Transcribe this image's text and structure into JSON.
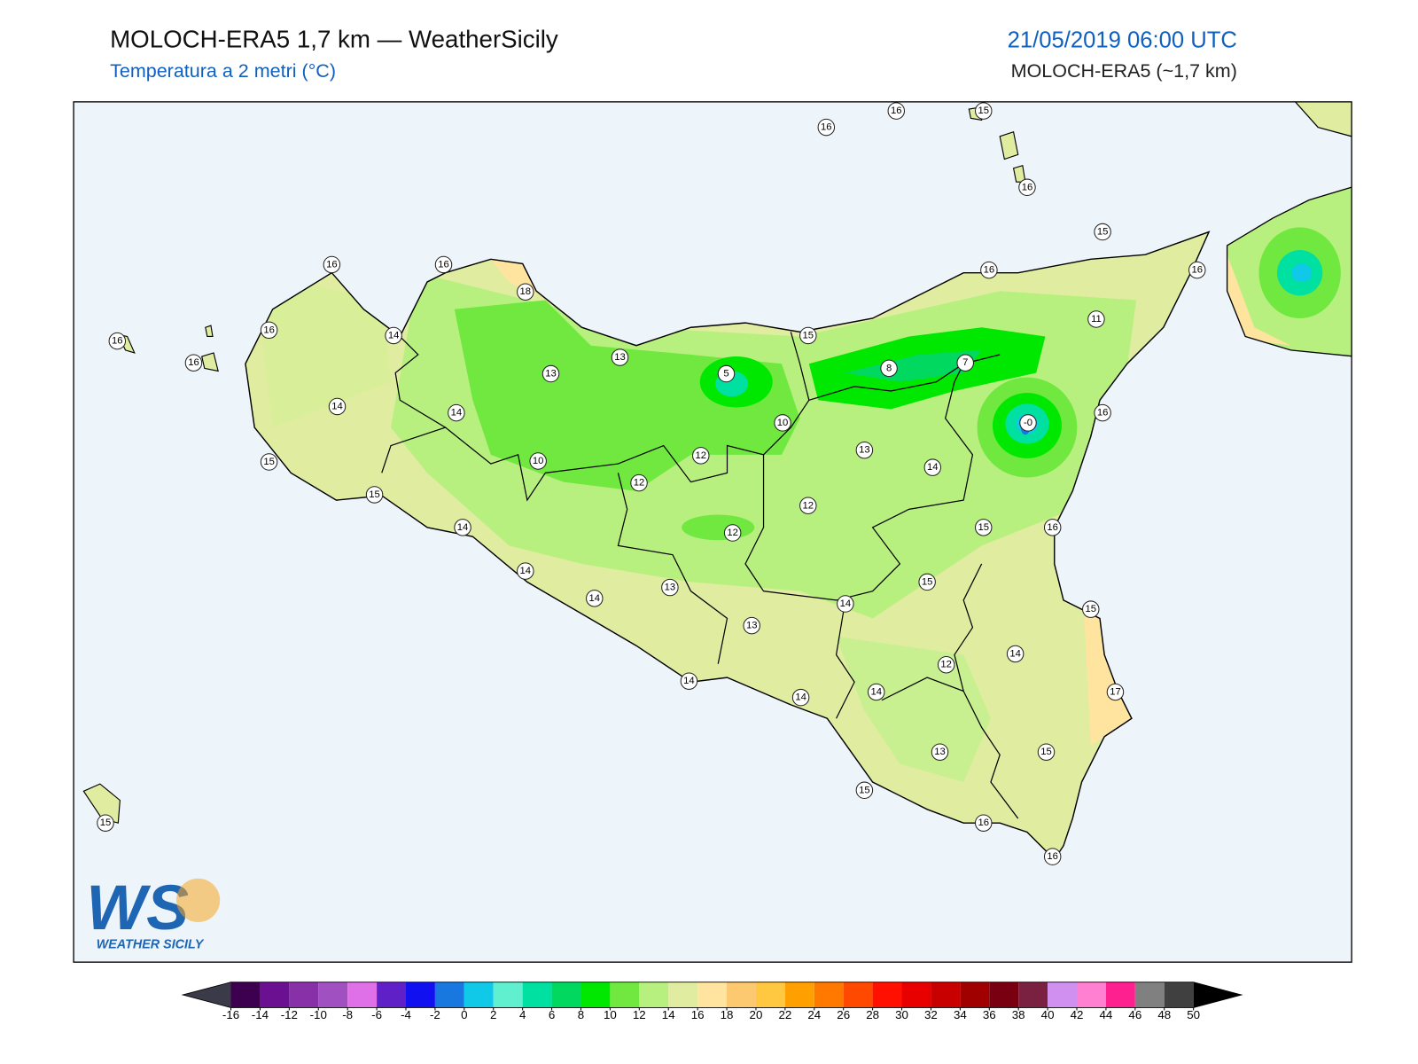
{
  "header": {
    "title": "MOLOCH-ERA5 1,7 km — WeatherSicily",
    "subtitle": "Temperatura a 2 metri (°C)",
    "datetime": "21/05/2019 06:00 UTC",
    "model": "MOLOCH-ERA5 (~1,7 km)"
  },
  "stations": [
    "16",
    "16",
    "15",
    "16",
    "15",
    "16",
    "16",
    "11",
    "7",
    "8",
    "15",
    "-0",
    "16",
    "14",
    "13",
    "10",
    "5",
    "13",
    "13",
    "18",
    "16",
    "16",
    "14",
    "16",
    "16",
    "16",
    "14",
    "14",
    "15",
    "15",
    "10",
    "12",
    "12",
    "12",
    "12",
    "15",
    "16",
    "14",
    "14",
    "15",
    "14",
    "13",
    "14",
    "13",
    "15",
    "14",
    "12",
    "14",
    "14",
    "14",
    "17",
    "13",
    "15",
    "15",
    "16",
    "16",
    "15"
  ],
  "logo": {
    "mark": "WS",
    "text": "WEATHER SICILY"
  },
  "colorbar": {
    "ticks": [
      -16,
      -14,
      -12,
      -10,
      -8,
      -6,
      -4,
      -2,
      0,
      2,
      4,
      6,
      8,
      10,
      12,
      14,
      16,
      18,
      20,
      22,
      24,
      26,
      28,
      30,
      32,
      34,
      36,
      38,
      40,
      42,
      44,
      46,
      48,
      50
    ],
    "colors": [
      "#3d0050",
      "#6a1090",
      "#8830a8",
      "#a050c0",
      "#e070e8",
      "#6020c8",
      "#1010f0",
      "#1878e0",
      "#10c8e8",
      "#60f0d0",
      "#00e0a0",
      "#00d860",
      "#00e800",
      "#70e840",
      "#b8f080",
      "#e0eca0",
      "#ffe4a0",
      "#fcc870",
      "#ffc840",
      "#ffa000",
      "#ff7800",
      "#ff4800",
      "#ff1000",
      "#e80000",
      "#c80000",
      "#a00000",
      "#780010",
      "#7a2040",
      "#d090f0",
      "#ff80d0",
      "#ff2090",
      "#808080",
      "#404040"
    ],
    "under_color": "#3a3a48",
    "over_color": "#000000"
  }
}
